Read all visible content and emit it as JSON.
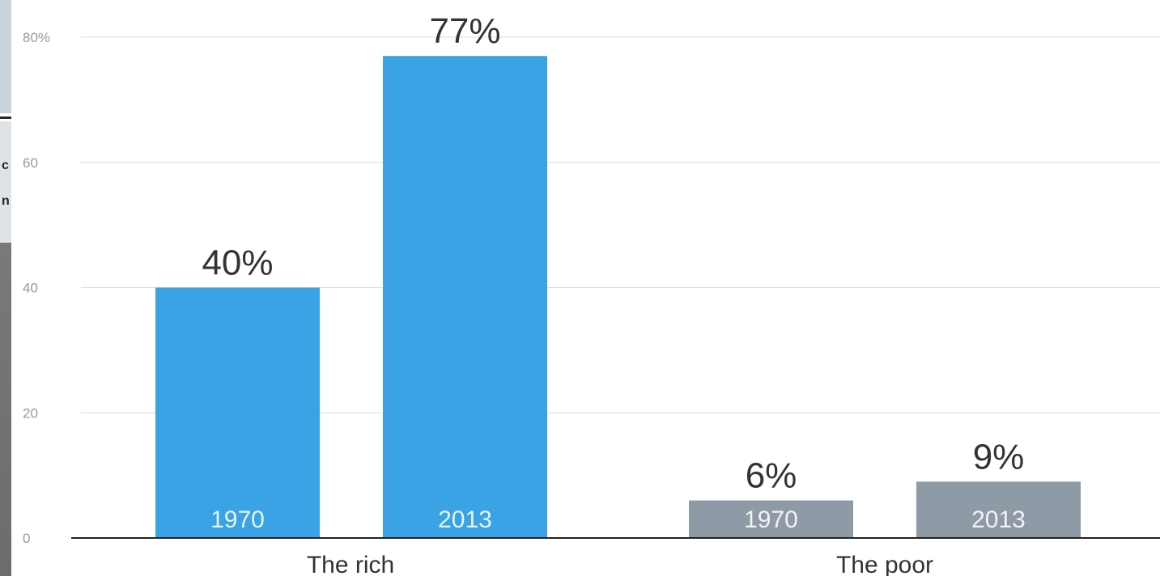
{
  "edge": {
    "glyph_a": "c",
    "glyph_b": "n"
  },
  "chart_data": {
    "type": "bar",
    "title": "",
    "xlabel": "",
    "ylabel": "",
    "ylim": [
      0,
      80
    ],
    "yticks": [
      "0",
      "20",
      "40",
      "60",
      "80%"
    ],
    "grid": true,
    "legend": "none",
    "groups": [
      {
        "label": "The rich",
        "color": "#3aa3e6",
        "bars": [
          {
            "year": "1970",
            "value": 40,
            "value_label": "40%"
          },
          {
            "year": "2013",
            "value": 77,
            "value_label": "77%"
          }
        ]
      },
      {
        "label": "The poor",
        "color": "#8e9ba6",
        "bars": [
          {
            "year": "1970",
            "value": 6,
            "value_label": "6%"
          },
          {
            "year": "2013",
            "value": 9,
            "value_label": "9%"
          }
        ]
      }
    ]
  }
}
